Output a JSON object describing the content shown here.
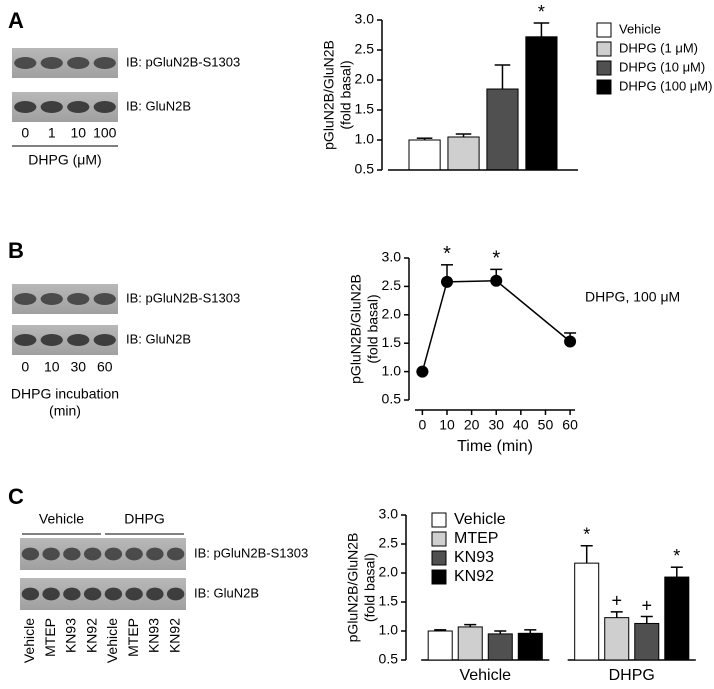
{
  "panels": [
    "A",
    "B",
    "C"
  ],
  "blots": [
    {
      "rows": [
        "IB: pGluN2B-S1303",
        "IB: GluN2B"
      ],
      "lanes": [
        "0",
        "1",
        "10",
        "100"
      ],
      "caption": [
        "DHPG (μM)"
      ]
    },
    {
      "rows": [
        "IB: pGluN2B-S1303",
        "IB: GluN2B"
      ],
      "lanes": [
        "0",
        "10",
        "30",
        "60"
      ],
      "caption": [
        "DHPG incubation",
        "(min)"
      ]
    },
    {
      "rows": [
        "IB: pGluN2B-S1303",
        "IB: GluN2B"
      ],
      "groups": [
        "Vehicle",
        "DHPG"
      ],
      "lanes": [
        "Vehicle",
        "MTEP",
        "KN93",
        "KN92",
        "Vehicle",
        "MTEP",
        "KN93",
        "KN92"
      ]
    }
  ],
  "chart_data": [
    {
      "type": "bar",
      "y_label": [
        "pGluN2B/GluN2B",
        "(fold basal)"
      ],
      "ylim": [
        0.5,
        3.0
      ],
      "yticks": [
        {
          "value": 0.5,
          "label": "0.5"
        },
        {
          "value": 1,
          "label": "1.0"
        },
        {
          "value": 1.5,
          "label": "1.5"
        },
        {
          "value": 2,
          "label": "2.0"
        },
        {
          "value": 2.5,
          "label": "2.5"
        },
        {
          "value": 3,
          "label": "3.0"
        }
      ],
      "series": [
        {
          "name": "Vehicle",
          "color": "#ffffff",
          "values": [
            1.0
          ],
          "errors": [
            0.03
          ]
        },
        {
          "name": "DHPG (1 μM)",
          "color": "#cfcfcf",
          "values": [
            1.05
          ],
          "errors": [
            0.05
          ]
        },
        {
          "name": "DHPG (10 μM)",
          "color": "#505050",
          "values": [
            1.85
          ],
          "errors": [
            0.4
          ]
        },
        {
          "name": "DHPG (100 μM)",
          "color": "#000000",
          "values": [
            2.72
          ],
          "errors": [
            0.23
          ],
          "significance": [
            "*"
          ]
        }
      ]
    },
    {
      "type": "line",
      "y_label": [
        "pGluN2B/GluN2B",
        "(fold basal)"
      ],
      "x_label": "Time (min)",
      "annotation": "DHPG, 100 μM",
      "x": [
        0,
        10,
        30,
        60
      ],
      "xlim": [
        -3,
        62
      ],
      "xticks": [
        0,
        10,
        20,
        30,
        40,
        50,
        60
      ],
      "ylim": [
        0.5,
        3.0
      ],
      "yticks": [
        {
          "value": 0.5,
          "label": "0.5"
        },
        {
          "value": 1,
          "label": "1.0"
        },
        {
          "value": 1.5,
          "label": "1.5"
        },
        {
          "value": 2,
          "label": "2.0"
        },
        {
          "value": 2.5,
          "label": "2.5"
        },
        {
          "value": 3,
          "label": "3.0"
        }
      ],
      "series": [
        {
          "color": "#000000",
          "values": [
            1.0,
            2.58,
            2.6,
            1.53
          ],
          "errors": [
            0,
            0.3,
            0.2,
            0.15
          ],
          "significance": [
            null,
            "*",
            "*",
            null
          ]
        }
      ]
    },
    {
      "type": "bar",
      "y_label": [
        "pGluN2B/GluN2B",
        "(fold basal)"
      ],
      "categories": [
        "Vehicle",
        "DHPG"
      ],
      "ylim": [
        0.5,
        3.0
      ],
      "yticks": [
        {
          "value": 0.5,
          "label": "0.5"
        },
        {
          "value": 1,
          "label": "1.0"
        },
        {
          "value": 1.5,
          "label": "1.5"
        },
        {
          "value": 2,
          "label": "2.0"
        },
        {
          "value": 2.5,
          "label": "2.5"
        },
        {
          "value": 3,
          "label": "3.0"
        }
      ],
      "series": [
        {
          "name": "Vehicle",
          "color": "#ffffff",
          "values": [
            1.0,
            2.17
          ],
          "errors": [
            0.02,
            0.3
          ],
          "significance": [
            null,
            "*"
          ]
        },
        {
          "name": "MTEP",
          "color": "#cfcfcf",
          "values": [
            1.07,
            1.23
          ],
          "errors": [
            0.04,
            0.1
          ],
          "significance": [
            null,
            "+"
          ]
        },
        {
          "name": "KN93",
          "color": "#505050",
          "values": [
            0.95,
            1.13
          ],
          "errors": [
            0.05,
            0.12
          ],
          "significance": [
            null,
            "+"
          ]
        },
        {
          "name": "KN92",
          "color": "#000000",
          "values": [
            0.96,
            1.93
          ],
          "errors": [
            0.06,
            0.17
          ],
          "significance": [
            null,
            "*"
          ]
        }
      ]
    }
  ]
}
